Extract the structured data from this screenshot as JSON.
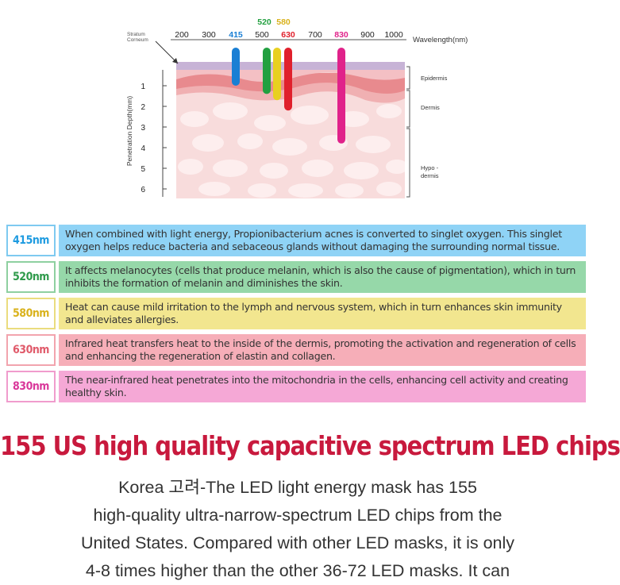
{
  "diagram": {
    "stratum_label_1": "Stratum",
    "stratum_label_2": "Corneum",
    "x_ticks": [
      "200",
      "300",
      "415",
      "500",
      "630",
      "700",
      "830",
      "900",
      "1000"
    ],
    "top_ticks": [
      "520",
      "580"
    ],
    "x_axis_label": "Wavelength(nm)",
    "y_axis_label": "Penetration Depth(mm)",
    "y_ticks": [
      "1",
      "2",
      "3",
      "4",
      "5",
      "6"
    ],
    "layers": {
      "epidermis": "Epidermis",
      "dermis": "Dermis",
      "hypo_1": "Hypo -",
      "hypo_2": "dermis"
    },
    "bars": [
      {
        "wavelength": 415,
        "depth_mm": 1.0,
        "color": "#1a7fd4"
      },
      {
        "wavelength": 520,
        "depth_mm": 1.4,
        "color": "#22a040"
      },
      {
        "wavelength": 580,
        "depth_mm": 1.7,
        "color": "#e8d020"
      },
      {
        "wavelength": 630,
        "depth_mm": 2.2,
        "color": "#e0202c"
      },
      {
        "wavelength": 830,
        "depth_mm": 3.8,
        "color": "#e0228a"
      }
    ]
  },
  "rows": [
    {
      "wavelength_label": "415nm",
      "text": "When combined with light energy, Propionibacterium acnes is converted to singlet oxygen. This singlet oxygen helps reduce bacteria and sebaceous glands without damaging the surrounding normal tissue.",
      "label_color": "#1e9be0",
      "border_color": "#7ecaf0",
      "bg_color": "#8fd3f6"
    },
    {
      "wavelength_label": "520nm",
      "text": "It affects melanocytes (cells that produce melanin, which is also the cause of pigmentation), which in turn inhibits the formation of melanin and diminishes the skin.",
      "label_color": "#2e9a4a",
      "border_color": "#8ed0a0",
      "bg_color": "#96d8a9"
    },
    {
      "wavelength_label": "580nm",
      "text": "Heat can cause mild irritation to the lymph and nervous system, which in turn enhances skin immunity and alleviates allergies.",
      "label_color": "#d9b21c",
      "border_color": "#eadc7e",
      "bg_color": "#f2e68f"
    },
    {
      "wavelength_label": "630nm",
      "text": "Infrared heat transfers heat to the inside of the dermis, promoting the activation and regeneration of cells and enhancing the regeneration of elastin and collagen.",
      "label_color": "#e05a6a",
      "border_color": "#f2a4ae",
      "bg_color": "#f6aeb8"
    },
    {
      "wavelength_label": "830nm",
      "text": "The near-infrared heat penetrates into the mitochondria in the cells, enhancing cell activity and creating healthy skin.",
      "label_color": "#d9389a",
      "border_color": "#f09ccd",
      "bg_color": "#f5a8d6"
    }
  ],
  "headline": "155 US high quality capacitive spectrum LED chips",
  "body_lines": [
    "Korea 고려-The LED light energy mask has 155",
    "high-quality ultra-narrow-spectrum LED chips from the",
    "United States. Compared with other LED masks, it is only",
    "4-8 times higher than the other 36-72 LED masks. It can"
  ]
}
